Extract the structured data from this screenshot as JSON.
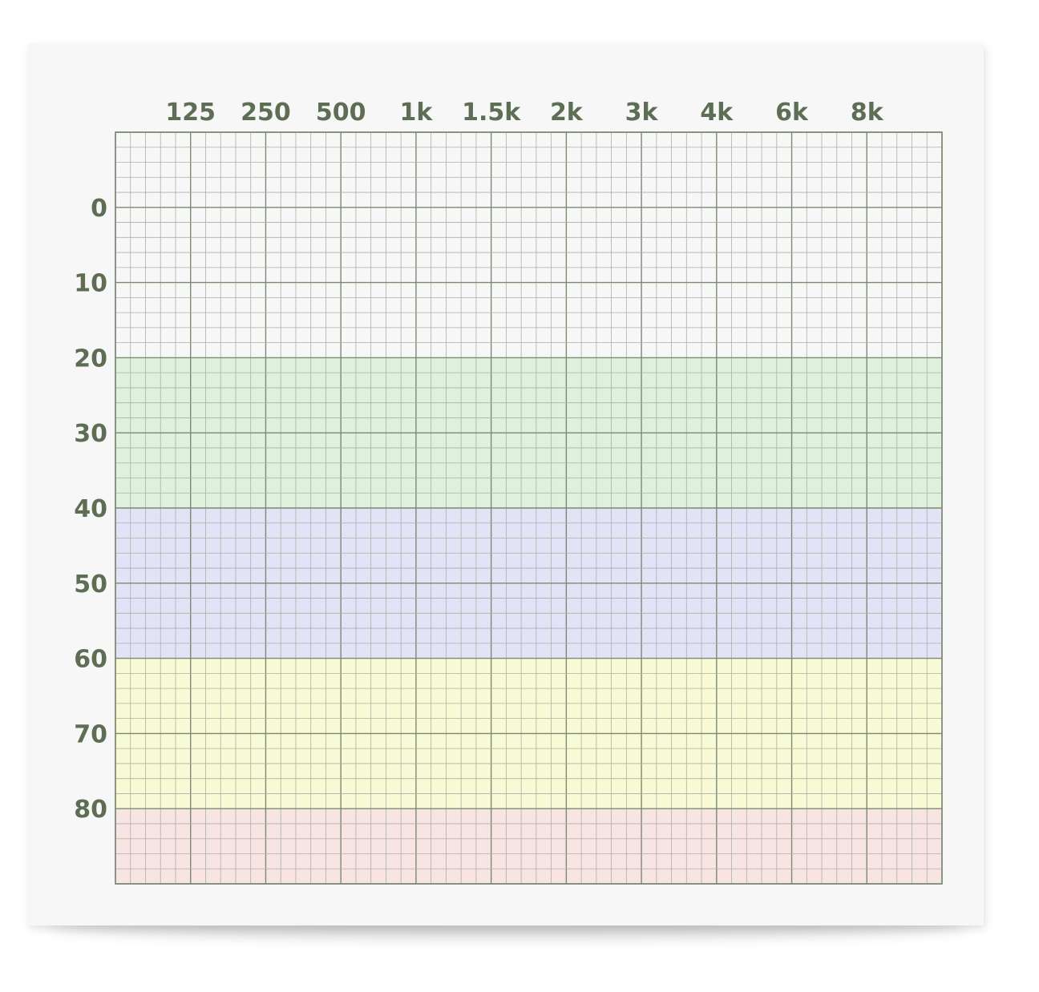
{
  "chart_data": {
    "type": "heatmap",
    "title": "",
    "xlabel": "",
    "ylabel": "",
    "x_ticks": [
      "125",
      "250",
      "500",
      "1k",
      "1.5k",
      "2k",
      "3k",
      "4k",
      "6k",
      "8k"
    ],
    "y_ticks": [
      "0",
      "10",
      "20",
      "30",
      "40",
      "50",
      "60",
      "70",
      "80"
    ],
    "ylim": [
      -10,
      90
    ],
    "grid": true,
    "bands": [
      {
        "name": "band-normal",
        "from": -10,
        "to": 20,
        "color": "#f7f7f7"
      },
      {
        "name": "band-mild",
        "from": 20,
        "to": 40,
        "color": "#dff0dc"
      },
      {
        "name": "band-moderate",
        "from": 40,
        "to": 60,
        "color": "#e4e2f7"
      },
      {
        "name": "band-severe",
        "from": 60,
        "to": 80,
        "color": "#f8f9d5"
      },
      {
        "name": "band-profound",
        "from": 80,
        "to": 90,
        "color": "#f8e4e2"
      }
    ],
    "colors": {
      "label": "#5d6e55",
      "grid_major": "#7a8a73",
      "grid_minor": "#a9b2a4"
    }
  }
}
